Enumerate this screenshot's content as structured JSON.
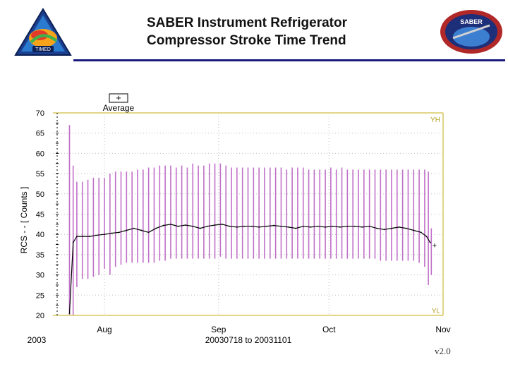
{
  "header": {
    "title_line1": "SABER Instrument Refrigerator",
    "title_line2": "Compressor Stroke Time Trend",
    "left_logo_text": "TIMED",
    "right_logo_text": "SABER"
  },
  "version": "v2.0",
  "chart_data": {
    "type": "line",
    "ylabel": "RCS - - [ Counts ]",
    "xlabel": "20030718 to 20031101",
    "year_label": "2003",
    "legend": {
      "marker": "+",
      "label": "Average",
      "placement": "top-left"
    },
    "limit_labels": {
      "high": "YH",
      "low": "YL"
    },
    "limits": {
      "high": 70,
      "low": 20
    },
    "ylim": [
      20,
      70
    ],
    "yticks": [
      20,
      25,
      30,
      35,
      40,
      45,
      50,
      55,
      60,
      65,
      70
    ],
    "x_range_days": [
      0,
      106
    ],
    "x_ticks": [
      {
        "day": 14,
        "label": "Aug"
      },
      {
        "day": 45,
        "label": "Sep"
      },
      {
        "day": 75,
        "label": "Oct"
      },
      {
        "day": 106,
        "label": "Nov"
      }
    ],
    "colors": {
      "range": "#c070c8",
      "average": "#000000",
      "limit": "#d8c860",
      "grid": "#bbbbbb"
    },
    "series": [
      {
        "name": "Average",
        "points": [
          [
            4.5,
            20.5
          ],
          [
            5.5,
            38.0
          ],
          [
            6.5,
            39.5
          ],
          [
            8,
            39.5
          ],
          [
            10,
            39.5
          ],
          [
            12,
            39.8
          ],
          [
            14,
            40.0
          ],
          [
            16,
            40.3
          ],
          [
            18,
            40.5
          ],
          [
            20,
            41.0
          ],
          [
            22,
            41.5
          ],
          [
            24,
            41.0
          ],
          [
            26,
            40.5
          ],
          [
            28,
            41.5
          ],
          [
            30,
            42.2
          ],
          [
            32,
            42.5
          ],
          [
            34,
            42.0
          ],
          [
            36,
            42.3
          ],
          [
            38,
            42.0
          ],
          [
            40,
            41.5
          ],
          [
            42,
            42.0
          ],
          [
            44,
            42.3
          ],
          [
            46,
            42.5
          ],
          [
            48,
            42.0
          ],
          [
            50,
            41.8
          ],
          [
            52,
            42.0
          ],
          [
            54,
            42.0
          ],
          [
            56,
            41.8
          ],
          [
            58,
            42.0
          ],
          [
            60,
            42.2
          ],
          [
            62,
            42.0
          ],
          [
            64,
            41.8
          ],
          [
            66,
            41.5
          ],
          [
            68,
            42.0
          ],
          [
            70,
            41.8
          ],
          [
            72,
            42.0
          ],
          [
            74,
            41.8
          ],
          [
            76,
            42.0
          ],
          [
            78,
            41.8
          ],
          [
            80,
            42.0
          ],
          [
            82,
            42.0
          ],
          [
            84,
            41.8
          ],
          [
            86,
            42.0
          ],
          [
            88,
            41.5
          ],
          [
            90,
            41.2
          ],
          [
            92,
            41.5
          ],
          [
            94,
            41.8
          ],
          [
            96,
            41.5
          ],
          [
            98,
            41.0
          ],
          [
            100,
            40.5
          ],
          [
            101.5,
            39.5
          ],
          [
            102.5,
            38.0
          ]
        ]
      },
      {
        "name": "Range",
        "bars": [
          [
            4.5,
            20.0,
            67.0
          ],
          [
            5.5,
            20.0,
            57.0
          ],
          [
            6.5,
            27.0,
            53.0
          ],
          [
            8,
            29.0,
            53.0
          ],
          [
            9.5,
            29.0,
            53.5
          ],
          [
            11,
            29.5,
            54.0
          ],
          [
            12.5,
            30.0,
            54.0
          ],
          [
            14,
            31.5,
            54.0
          ],
          [
            15.5,
            30.0,
            55.0
          ],
          [
            17,
            32.0,
            55.5
          ],
          [
            18.5,
            32.5,
            55.5
          ],
          [
            20,
            33.0,
            55.5
          ],
          [
            21.5,
            33.0,
            55.5
          ],
          [
            23,
            33.0,
            56.0
          ],
          [
            24.5,
            33.0,
            56.0
          ],
          [
            26,
            33.0,
            56.5
          ],
          [
            27.5,
            33.0,
            56.5
          ],
          [
            29,
            33.5,
            57.0
          ],
          [
            30.5,
            33.5,
            57.0
          ],
          [
            32,
            34.0,
            57.0
          ],
          [
            33.5,
            34.0,
            56.5
          ],
          [
            35,
            34.0,
            57.0
          ],
          [
            36.5,
            34.0,
            56.5
          ],
          [
            38,
            34.0,
            57.5
          ],
          [
            39.5,
            34.0,
            57.0
          ],
          [
            41,
            34.0,
            57.0
          ],
          [
            42.5,
            34.0,
            57.5
          ],
          [
            44,
            34.0,
            57.5
          ],
          [
            45.5,
            34.5,
            57.5
          ],
          [
            47,
            34.0,
            57.0
          ],
          [
            48.5,
            34.0,
            56.5
          ],
          [
            50,
            34.0,
            56.5
          ],
          [
            51.5,
            34.0,
            56.5
          ],
          [
            53,
            34.0,
            56.5
          ],
          [
            54.5,
            34.0,
            56.5
          ],
          [
            56,
            34.0,
            56.5
          ],
          [
            57.5,
            34.0,
            56.5
          ],
          [
            59,
            34.0,
            56.5
          ],
          [
            60.5,
            34.0,
            56.5
          ],
          [
            62,
            34.0,
            56.5
          ],
          [
            63.5,
            34.0,
            56.0
          ],
          [
            65,
            34.0,
            56.5
          ],
          [
            66.5,
            34.0,
            56.5
          ],
          [
            68,
            34.0,
            56.5
          ],
          [
            69.5,
            34.0,
            56.0
          ],
          [
            71,
            34.0,
            56.0
          ],
          [
            72.5,
            34.0,
            56.0
          ],
          [
            74,
            34.0,
            56.0
          ],
          [
            75.5,
            34.0,
            56.5
          ],
          [
            77,
            34.0,
            56.0
          ],
          [
            78.5,
            34.0,
            56.5
          ],
          [
            80,
            34.0,
            56.0
          ],
          [
            81.5,
            34.0,
            56.0
          ],
          [
            83,
            34.0,
            56.0
          ],
          [
            84.5,
            34.0,
            56.0
          ],
          [
            86,
            34.0,
            56.0
          ],
          [
            87.5,
            34.0,
            56.0
          ],
          [
            89,
            33.5,
            56.0
          ],
          [
            90.5,
            33.5,
            56.0
          ],
          [
            92,
            33.5,
            56.0
          ],
          [
            93.5,
            33.5,
            56.0
          ],
          [
            95,
            33.5,
            56.0
          ],
          [
            96.5,
            33.5,
            56.0
          ],
          [
            98,
            33.5,
            56.0
          ],
          [
            99.5,
            33.0,
            56.0
          ],
          [
            101,
            32.0,
            56.0
          ],
          [
            102,
            27.5,
            55.5
          ],
          [
            102.8,
            30.0,
            41.5
          ]
        ]
      }
    ]
  }
}
